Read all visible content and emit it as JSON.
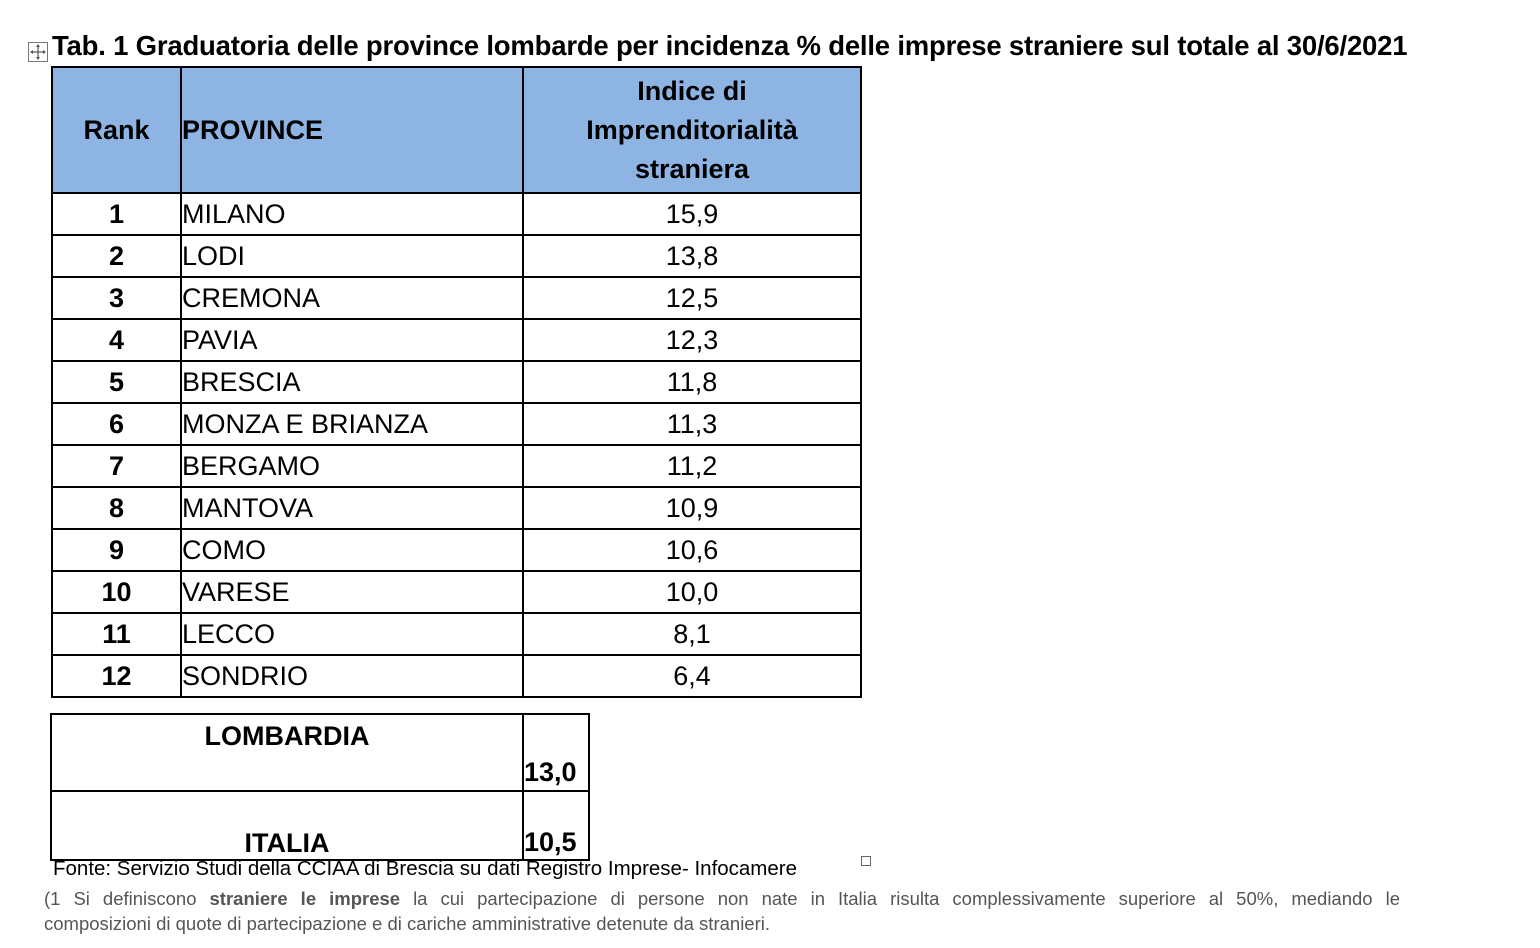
{
  "title": "Tab. 1 Graduatoria delle province lombarde per incidenza % delle imprese straniere sul totale al 30/6/2021",
  "table": {
    "headers": {
      "rank": "Rank",
      "province": "PROVINCE",
      "index_line1": "Indice di",
      "index_line2": "Imprenditorialità",
      "index_line3": "straniera"
    },
    "rows": [
      {
        "rank": "1",
        "province": "MILANO",
        "value": "15,9"
      },
      {
        "rank": "2",
        "province": "LODI",
        "value": "13,8"
      },
      {
        "rank": "3",
        "province": "CREMONA",
        "value": "12,5"
      },
      {
        "rank": "4",
        "province": "PAVIA",
        "value": "12,3"
      },
      {
        "rank": "5",
        "province": "BRESCIA",
        "value": "11,8"
      },
      {
        "rank": "6",
        "province": "MONZA E BRIANZA",
        "value": "11,3"
      },
      {
        "rank": "7",
        "province": "BERGAMO",
        "value": "11,2"
      },
      {
        "rank": "8",
        "province": "MANTOVA",
        "value": "10,9"
      },
      {
        "rank": "9",
        "province": "COMO",
        "value": "10,6"
      },
      {
        "rank": "10",
        "province": "VARESE",
        "value": "10,0"
      },
      {
        "rank": "11",
        "province": "LECCO",
        "value": "8,1"
      },
      {
        "rank": "12",
        "province": "SONDRIO",
        "value": "6,4"
      }
    ],
    "header_color": "#8db4e2"
  },
  "totals": [
    {
      "label": "LOMBARDIA",
      "value": "13,0"
    },
    {
      "label": "ITALIA",
      "value": "10,5"
    }
  ],
  "source": "Fonte: Servizio Studi della CCIAA di Brescia su dati Registro Imprese- Infocamere",
  "footnote": {
    "prefix": "(1 Si definiscono ",
    "bold": "straniere le imprese",
    "rest_line1": " la cui partecipazione di persone non nate in Italia risulta complessivamente superiore al 50%, mediando le",
    "line2": "composizioni di quote di partecipazione e di cariche amministrative detenute da stranieri."
  },
  "icons": {
    "table_handle": "move-handle-icon",
    "anchor": "anchor-box-icon"
  }
}
